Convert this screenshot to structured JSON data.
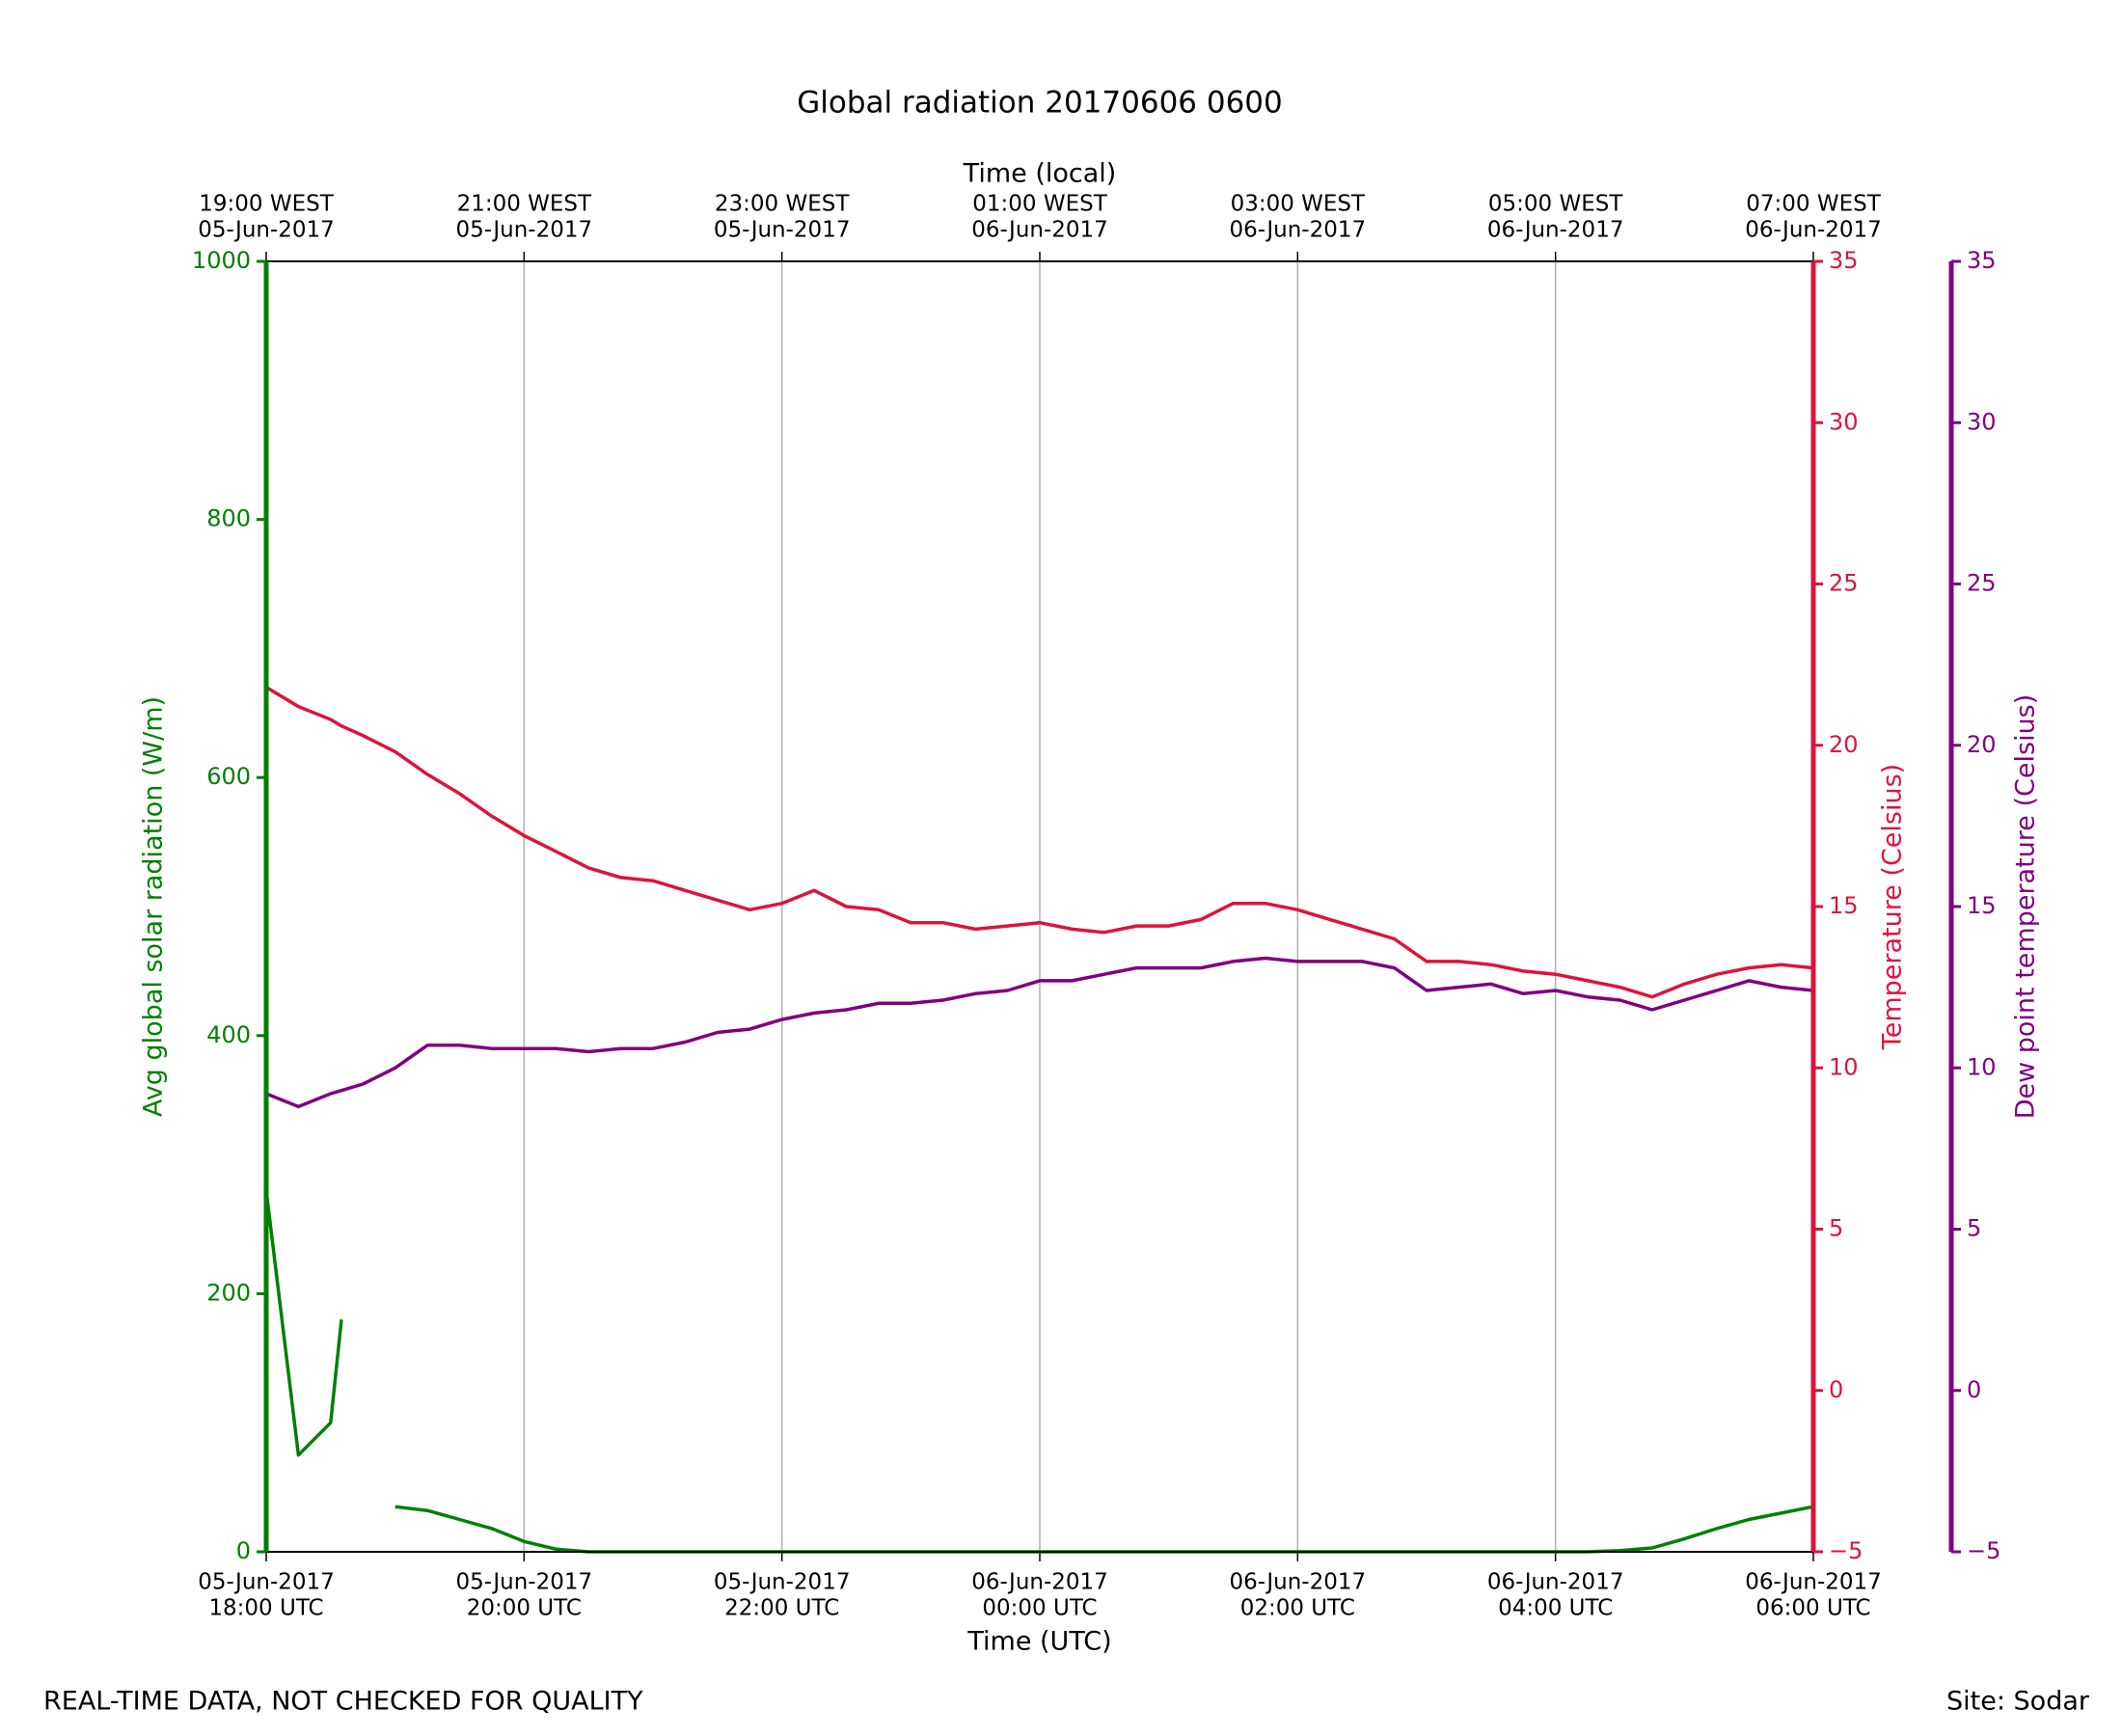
{
  "chart_data": {
    "type": "line",
    "title": "Global radiation 20170606 0600",
    "xlabel": "Time (UTC)",
    "x2label": "Time (local)",
    "ylabel": "Avg global solar radiation (W/m)",
    "y2label": "Temperature (Celsius)",
    "y3label": "Dew point temperature (Celsius)",
    "footer_left": "REAL-TIME DATA, NOT CHECKED FOR QUALITY",
    "footer_right": "Site: Sodar",
    "grid": true,
    "x": [
      "2017-06-05 18:00",
      "2017-06-05 18:15",
      "2017-06-05 18:30",
      "2017-06-05 18:35",
      "2017-06-05 18:45",
      "2017-06-05 19:00",
      "2017-06-05 19:15",
      "2017-06-05 19:30",
      "2017-06-05 19:45",
      "2017-06-05 20:00",
      "2017-06-05 20:15",
      "2017-06-05 20:30",
      "2017-06-05 20:45",
      "2017-06-05 21:00",
      "2017-06-05 21:15",
      "2017-06-05 21:30",
      "2017-06-05 21:45",
      "2017-06-05 22:00",
      "2017-06-05 22:15",
      "2017-06-05 22:30",
      "2017-06-05 22:45",
      "2017-06-05 23:00",
      "2017-06-05 23:15",
      "2017-06-05 23:30",
      "2017-06-05 23:45",
      "2017-06-06 00:00",
      "2017-06-06 00:15",
      "2017-06-06 00:30",
      "2017-06-06 00:45",
      "2017-06-06 01:00",
      "2017-06-06 01:15",
      "2017-06-06 01:30",
      "2017-06-06 01:45",
      "2017-06-06 02:00",
      "2017-06-06 02:15",
      "2017-06-06 02:30",
      "2017-06-06 02:45",
      "2017-06-06 03:00",
      "2017-06-06 03:15",
      "2017-06-06 03:30",
      "2017-06-06 03:45",
      "2017-06-06 04:00",
      "2017-06-06 04:15",
      "2017-06-06 04:30",
      "2017-06-06 04:45",
      "2017-06-06 05:00",
      "2017-06-06 05:15",
      "2017-06-06 05:30",
      "2017-06-06 05:45",
      "2017-06-06 06:00"
    ],
    "xlim": [
      "2017-06-05 18:00",
      "2017-06-06 06:00"
    ],
    "xticks": [
      {
        "value": "2017-06-05 18:00",
        "label": [
          "05-Jun-2017",
          "18:00 UTC"
        ]
      },
      {
        "value": "2017-06-05 20:00",
        "label": [
          "05-Jun-2017",
          "20:00 UTC"
        ]
      },
      {
        "value": "2017-06-05 22:00",
        "label": [
          "05-Jun-2017",
          "22:00 UTC"
        ]
      },
      {
        "value": "2017-06-06 00:00",
        "label": [
          "06-Jun-2017",
          "00:00 UTC"
        ]
      },
      {
        "value": "2017-06-06 02:00",
        "label": [
          "06-Jun-2017",
          "02:00 UTC"
        ]
      },
      {
        "value": "2017-06-06 04:00",
        "label": [
          "06-Jun-2017",
          "04:00 UTC"
        ]
      },
      {
        "value": "2017-06-06 06:00",
        "label": [
          "06-Jun-2017",
          "06:00 UTC"
        ]
      }
    ],
    "x2ticks": [
      {
        "value": "2017-06-05 18:00",
        "label": [
          "19:00 WEST",
          "05-Jun-2017"
        ]
      },
      {
        "value": "2017-06-05 20:00",
        "label": [
          "21:00 WEST",
          "05-Jun-2017"
        ]
      },
      {
        "value": "2017-06-05 22:00",
        "label": [
          "23:00 WEST",
          "05-Jun-2017"
        ]
      },
      {
        "value": "2017-06-06 00:00",
        "label": [
          "01:00 WEST",
          "06-Jun-2017"
        ]
      },
      {
        "value": "2017-06-06 02:00",
        "label": [
          "03:00 WEST",
          "06-Jun-2017"
        ]
      },
      {
        "value": "2017-06-06 04:00",
        "label": [
          "05:00 WEST",
          "06-Jun-2017"
        ]
      },
      {
        "value": "2017-06-06 06:00",
        "label": [
          "07:00 WEST",
          "06-Jun-2017"
        ]
      }
    ],
    "ylim": [
      0,
      1000
    ],
    "yticks": [
      0,
      200,
      400,
      600,
      800,
      1000
    ],
    "y2lim": [
      -5,
      35
    ],
    "y2ticks": [
      {
        "value": -5,
        "label": "−5"
      },
      0,
      5,
      10,
      15,
      20,
      25,
      30,
      35
    ],
    "y3lim": [
      -5,
      35
    ],
    "y3ticks": [
      {
        "value": -5,
        "label": "−5"
      },
      0,
      5,
      10,
      15,
      20,
      25,
      30,
      35
    ],
    "series": [
      {
        "name": "Avg global solar radiation",
        "color": "#008000",
        "axis": "y",
        "values": [
          280,
          75,
          100,
          180,
          null,
          35,
          32,
          25,
          18,
          8,
          2,
          0,
          0,
          0,
          0,
          0,
          0,
          0,
          0,
          0,
          0,
          0,
          0,
          0,
          0,
          0,
          0,
          0,
          0,
          0,
          0,
          0,
          0,
          0,
          0,
          0,
          0,
          0,
          0,
          0,
          0,
          0,
          0,
          1,
          3,
          10,
          18,
          25,
          30,
          35
        ]
      },
      {
        "name": "Temperature",
        "color": "#dc143c",
        "axis": "y2",
        "values": [
          21.8,
          21.2,
          20.8,
          20.6,
          20.3,
          19.8,
          19.1,
          18.5,
          17.8,
          17.2,
          16.7,
          16.2,
          15.9,
          15.8,
          15.5,
          15.2,
          14.9,
          15.1,
          15.5,
          15.0,
          14.9,
          14.5,
          14.5,
          14.3,
          14.4,
          14.5,
          14.3,
          14.2,
          14.4,
          14.4,
          14.6,
          15.1,
          15.1,
          14.9,
          14.6,
          14.3,
          14.0,
          13.3,
          13.3,
          13.2,
          13.0,
          12.9,
          12.7,
          12.5,
          12.2,
          12.6,
          12.9,
          13.1,
          13.2,
          13.1
        ]
      },
      {
        "name": "Dew point temperature",
        "color": "#800080",
        "axis": "y3",
        "values": [
          9.2,
          8.8,
          9.2,
          9.3,
          9.5,
          10.0,
          10.7,
          10.7,
          10.6,
          10.6,
          10.6,
          10.5,
          10.6,
          10.6,
          10.8,
          11.1,
          11.2,
          11.5,
          11.7,
          11.8,
          12.0,
          12.0,
          12.1,
          12.3,
          12.4,
          12.7,
          12.7,
          12.9,
          13.1,
          13.1,
          13.1,
          13.3,
          13.4,
          13.3,
          13.3,
          13.3,
          13.1,
          12.4,
          12.5,
          12.6,
          12.3,
          12.4,
          12.2,
          12.1,
          11.8,
          12.1,
          12.4,
          12.7,
          12.5,
          12.4
        ]
      }
    ]
  }
}
